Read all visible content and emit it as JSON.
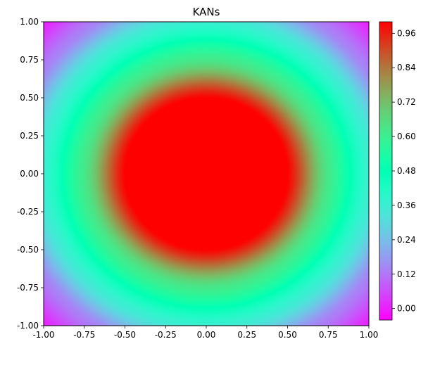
{
  "chart_data": {
    "type": "heatmap",
    "title": "KANs",
    "xlabel": "",
    "ylabel": "",
    "xlim": [
      -1.0,
      1.0
    ],
    "ylim": [
      -1.0,
      1.0
    ],
    "x_ticks": [
      "-1.00",
      "-0.75",
      "-0.50",
      "-0.25",
      "0.00",
      "0.25",
      "0.50",
      "0.75",
      "1.00"
    ],
    "y_ticks": [
      "-1.00",
      "-0.75",
      "-0.50",
      "-0.25",
      "0.00",
      "0.25",
      "0.50",
      "0.75",
      "1.00"
    ],
    "colormap": "rainbow",
    "colorbar": {
      "range": [
        -0.04,
        1.0
      ],
      "ticks": [
        "0.00",
        "0.12",
        "0.24",
        "0.36",
        "0.48",
        "0.60",
        "0.72",
        "0.84",
        "0.96"
      ]
    },
    "field": {
      "description_center": [
        0.0,
        0.0
      ],
      "plateau_value": 1.0,
      "plateau_radius": 0.5,
      "value_at_radius_1": 0.36,
      "value_at_corner": 0.0
    },
    "grid": false
  }
}
